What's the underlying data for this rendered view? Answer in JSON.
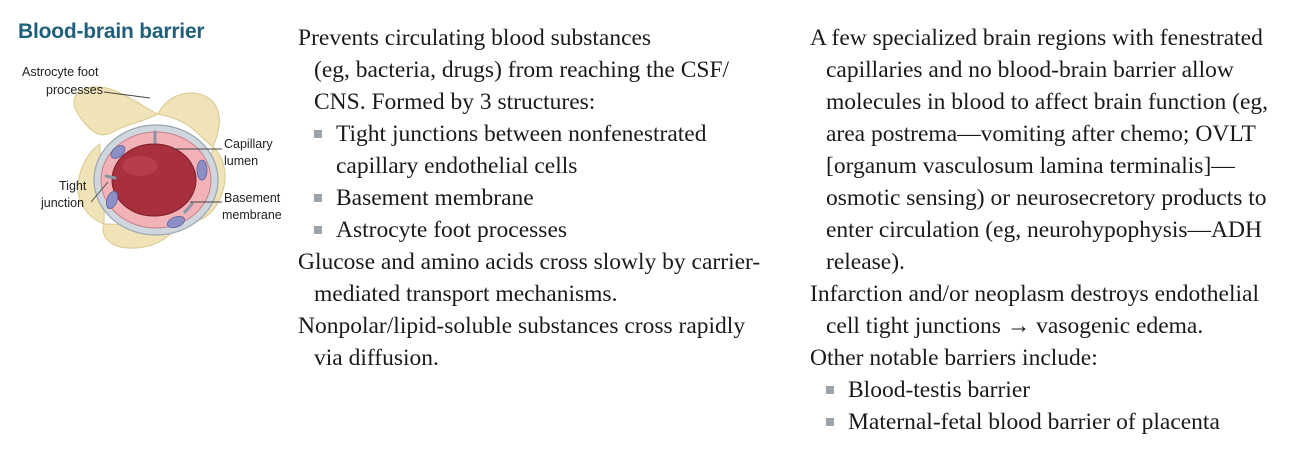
{
  "heading": "Blood-brain barrier",
  "figure": {
    "labels": {
      "astrocyte_line1": "Astrocyte foot",
      "astrocyte_line2": "processes",
      "capillary_line1": "Capillary",
      "capillary_line2": "lumen",
      "tight_line1": "Tight",
      "tight_line2": "junction",
      "basement_line1": "Basement",
      "basement_line2": "membrane"
    },
    "colors": {
      "astrocyte": "#efe3b7",
      "lumen": "#a82f3d",
      "endothelium": "#f2b3b8",
      "membrane": "#cfd6de",
      "nucleus": "#8c8fc6"
    }
  },
  "col1": {
    "p1": {
      "first": "Prevents circulating blood substances",
      "rest1": "(eg, bacteria, drugs) from reaching the CSF/",
      "rest2": "CNS. Formed by 3 structures:"
    },
    "bullets": [
      {
        "line1": "Tight junctions between nonfenestrated",
        "line2": "capillary endothelial cells"
      },
      {
        "line1": "Basement membrane"
      },
      {
        "line1": "Astrocyte foot processes"
      }
    ],
    "p2": {
      "first": "Glucose and amino acids cross slowly by carrier-",
      "rest1": "mediated transport mechanisms."
    },
    "p3": {
      "first": "Nonpolar/lipid-soluble substances cross rapidly",
      "rest1": "via diffusion."
    }
  },
  "col2": {
    "p1": {
      "first": "A few specialized brain regions with fenestrated",
      "rest": [
        "capillaries and no blood-brain barrier allow",
        "molecules in blood to affect brain function (eg,",
        "area postrema—vomiting after chemo; OVLT",
        "[organum vasculosum lamina terminalis]—",
        "osmotic sensing) or neurosecretory products to",
        "enter circulation (eg, neurohypophysis—ADH",
        "release)."
      ]
    },
    "p2": {
      "first": "Infarction and/or neoplasm destroys endothelial",
      "rest1": "cell tight junctions → vasogenic edema."
    },
    "p3": {
      "first": "Other notable barriers include:"
    },
    "bullets": [
      {
        "line1": "Blood-testis barrier"
      },
      {
        "line1": "Maternal-fetal blood barrier of placenta"
      }
    ]
  }
}
